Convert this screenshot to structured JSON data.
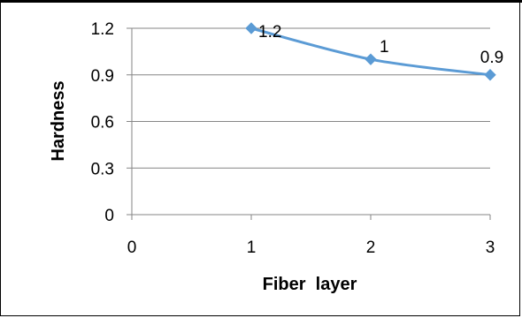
{
  "chart_data": {
    "type": "line",
    "title": "",
    "xlabel": "Fiber  layer",
    "ylabel": "Hardness",
    "xlim": [
      0,
      3
    ],
    "ylim": [
      0,
      1.2
    ],
    "x_ticks": [
      "0",
      "1",
      "2",
      "3"
    ],
    "y_ticks": [
      "0",
      "0.3",
      "0.6",
      "0.9",
      "1.2"
    ],
    "grid": "horizontal",
    "smooth": true,
    "series": [
      {
        "x": [
          1,
          2,
          3
        ],
        "values": [
          1.2,
          1,
          0.9
        ],
        "data_labels": [
          "1.2",
          "1",
          "0.9"
        ],
        "color": "#5B9BD5",
        "marker": "diamond"
      }
    ]
  }
}
